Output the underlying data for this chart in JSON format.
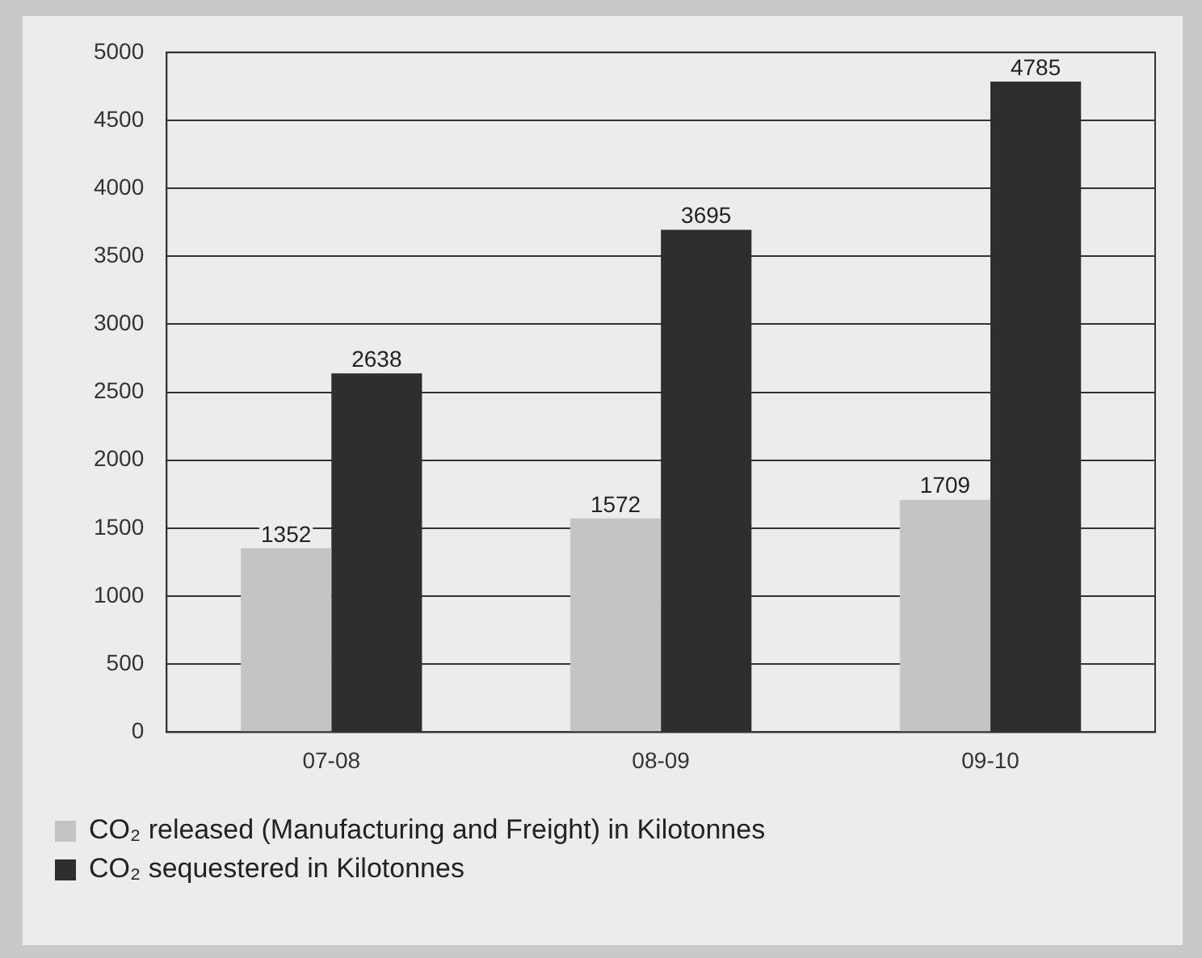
{
  "chart_data": {
    "type": "bar",
    "categories": [
      "07-08",
      "08-09",
      "09-10"
    ],
    "series": [
      {
        "name": "CO₂ released (Manufacturing and Freight) in Kilotonnes",
        "color": "#c4c4c4",
        "values": [
          1352,
          1572,
          1709
        ]
      },
      {
        "name": "CO₂ sequestered in Kilotonnes",
        "color": "#2e2e2e",
        "values": [
          2638,
          3695,
          4785
        ]
      }
    ],
    "ylim": [
      0,
      5000
    ],
    "yticks": [
      0,
      500,
      1000,
      1500,
      2000,
      2500,
      3000,
      3500,
      4000,
      4500,
      5000
    ],
    "grid": "y",
    "legend": "bottom left",
    "data_labels": true
  }
}
